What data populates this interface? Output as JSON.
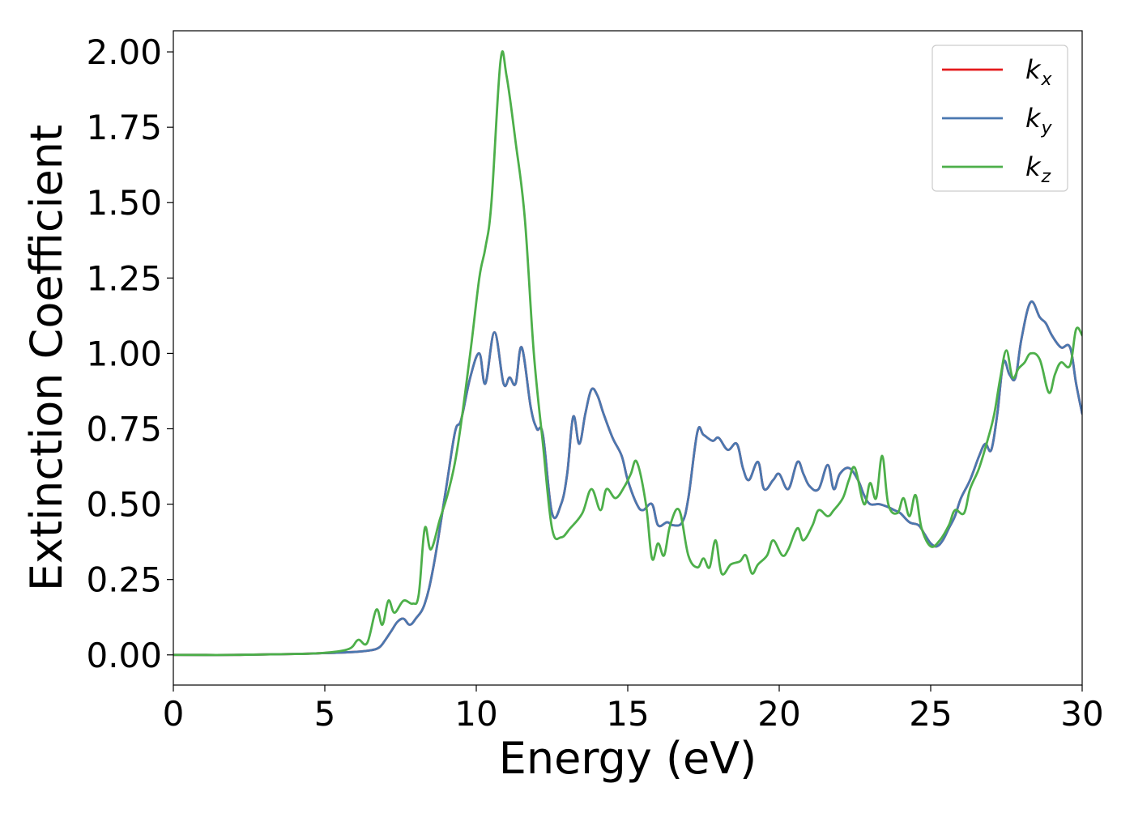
{
  "chart_data": {
    "type": "line",
    "title": "",
    "xlabel": "Energy (eV)",
    "ylabel": "Extinction Coefficient",
    "xlim": [
      0,
      30
    ],
    "ylim": [
      -0.1,
      2.07
    ],
    "xticks": [
      0,
      5,
      10,
      15,
      20,
      25,
      30
    ],
    "xtick_labels": [
      "0",
      "5",
      "10",
      "15",
      "20",
      "25",
      "30"
    ],
    "yticks": [
      0,
      0.25,
      0.5,
      0.75,
      1.0,
      1.25,
      1.5,
      1.75,
      2.0
    ],
    "ytick_labels": [
      "0.00",
      "0.25",
      "0.50",
      "0.75",
      "1.00",
      "1.25",
      "1.50",
      "1.75",
      "2.00"
    ],
    "grid": false,
    "legend_position": "top-right",
    "series": [
      {
        "name": "k_x",
        "legend_base": "k",
        "legend_sub": "x",
        "color": "#e41a1c",
        "x": [
          0,
          2,
          4,
          5,
          6,
          6.5,
          6.8,
          7.0,
          7.2,
          7.4,
          7.6,
          7.8,
          8.0,
          8.3,
          8.6,
          9.0,
          9.3,
          9.5,
          9.8,
          10.1,
          10.3,
          10.6,
          10.9,
          11.1,
          11.3,
          11.5,
          11.8,
          12.0,
          12.2,
          12.5,
          12.8,
          13.0,
          13.2,
          13.4,
          13.6,
          13.8,
          14.0,
          14.2,
          14.5,
          14.8,
          15.0,
          15.3,
          15.5,
          15.8,
          16.0,
          16.3,
          16.5,
          16.8,
          17.0,
          17.3,
          17.5,
          17.8,
          18.0,
          18.3,
          18.6,
          18.8,
          19.0,
          19.3,
          19.5,
          19.8,
          20.0,
          20.3,
          20.6,
          20.8,
          21.0,
          21.3,
          21.6,
          21.8,
          22.0,
          22.3,
          22.6,
          22.8,
          23.0,
          23.3,
          23.6,
          23.8,
          24.0,
          24.3,
          24.6,
          24.8,
          25.0,
          25.2,
          25.4,
          25.6,
          25.8,
          26.0,
          26.3,
          26.6,
          26.8,
          27.0,
          27.2,
          27.4,
          27.6,
          27.8,
          28.0,
          28.3,
          28.6,
          28.8,
          29.0,
          29.3,
          29.6,
          29.8,
          30.0
        ],
        "values": [
          0.0,
          0.0,
          0.003,
          0.006,
          0.01,
          0.015,
          0.025,
          0.05,
          0.08,
          0.11,
          0.12,
          0.1,
          0.12,
          0.17,
          0.3,
          0.55,
          0.74,
          0.78,
          0.92,
          1.0,
          0.9,
          1.07,
          0.9,
          0.92,
          0.9,
          1.02,
          0.82,
          0.75,
          0.73,
          0.47,
          0.5,
          0.6,
          0.79,
          0.7,
          0.8,
          0.88,
          0.86,
          0.8,
          0.72,
          0.66,
          0.58,
          0.5,
          0.48,
          0.5,
          0.43,
          0.44,
          0.43,
          0.44,
          0.52,
          0.74,
          0.73,
          0.71,
          0.72,
          0.68,
          0.7,
          0.62,
          0.58,
          0.64,
          0.55,
          0.58,
          0.6,
          0.55,
          0.64,
          0.6,
          0.56,
          0.55,
          0.63,
          0.55,
          0.6,
          0.62,
          0.58,
          0.53,
          0.5,
          0.5,
          0.49,
          0.48,
          0.47,
          0.44,
          0.43,
          0.4,
          0.37,
          0.36,
          0.38,
          0.42,
          0.46,
          0.52,
          0.58,
          0.66,
          0.7,
          0.68,
          0.8,
          0.97,
          0.93,
          0.92,
          1.05,
          1.17,
          1.12,
          1.1,
          1.06,
          1.02,
          1.02,
          0.9,
          0.8
        ]
      },
      {
        "name": "k_y",
        "legend_base": "k",
        "legend_sub": "y",
        "color": "#4a78b0",
        "x": [
          0,
          2,
          4,
          5,
          6,
          6.5,
          6.8,
          7.0,
          7.2,
          7.4,
          7.6,
          7.8,
          8.0,
          8.3,
          8.6,
          9.0,
          9.3,
          9.5,
          9.8,
          10.1,
          10.3,
          10.6,
          10.9,
          11.1,
          11.3,
          11.5,
          11.8,
          12.0,
          12.2,
          12.5,
          12.8,
          13.0,
          13.2,
          13.4,
          13.6,
          13.8,
          14.0,
          14.2,
          14.5,
          14.8,
          15.0,
          15.3,
          15.5,
          15.8,
          16.0,
          16.3,
          16.5,
          16.8,
          17.0,
          17.3,
          17.5,
          17.8,
          18.0,
          18.3,
          18.6,
          18.8,
          19.0,
          19.3,
          19.5,
          19.8,
          20.0,
          20.3,
          20.6,
          20.8,
          21.0,
          21.3,
          21.6,
          21.8,
          22.0,
          22.3,
          22.6,
          22.8,
          23.0,
          23.3,
          23.6,
          23.8,
          24.0,
          24.3,
          24.6,
          24.8,
          25.0,
          25.2,
          25.4,
          25.6,
          25.8,
          26.0,
          26.3,
          26.6,
          26.8,
          27.0,
          27.2,
          27.4,
          27.6,
          27.8,
          28.0,
          28.3,
          28.6,
          28.8,
          29.0,
          29.3,
          29.6,
          29.8,
          30.0
        ],
        "values": [
          0.0,
          0.0,
          0.003,
          0.006,
          0.01,
          0.015,
          0.025,
          0.05,
          0.08,
          0.11,
          0.12,
          0.1,
          0.12,
          0.17,
          0.3,
          0.55,
          0.74,
          0.78,
          0.92,
          1.0,
          0.9,
          1.07,
          0.9,
          0.92,
          0.9,
          1.02,
          0.82,
          0.75,
          0.73,
          0.47,
          0.5,
          0.6,
          0.79,
          0.7,
          0.8,
          0.88,
          0.86,
          0.8,
          0.72,
          0.66,
          0.58,
          0.5,
          0.48,
          0.5,
          0.43,
          0.44,
          0.43,
          0.44,
          0.52,
          0.74,
          0.73,
          0.71,
          0.72,
          0.68,
          0.7,
          0.62,
          0.58,
          0.64,
          0.55,
          0.58,
          0.6,
          0.55,
          0.64,
          0.6,
          0.56,
          0.55,
          0.63,
          0.55,
          0.6,
          0.62,
          0.58,
          0.53,
          0.5,
          0.5,
          0.49,
          0.48,
          0.47,
          0.44,
          0.43,
          0.4,
          0.37,
          0.36,
          0.38,
          0.42,
          0.46,
          0.52,
          0.58,
          0.66,
          0.7,
          0.68,
          0.8,
          0.97,
          0.93,
          0.92,
          1.05,
          1.17,
          1.12,
          1.1,
          1.06,
          1.02,
          1.02,
          0.9,
          0.8
        ]
      },
      {
        "name": "k_z",
        "legend_base": "k",
        "legend_sub": "z",
        "color": "#4daf4a",
        "x": [
          0,
          2,
          4,
          5,
          5.8,
          6.1,
          6.4,
          6.7,
          6.9,
          7.1,
          7.3,
          7.6,
          7.9,
          8.1,
          8.3,
          8.5,
          8.8,
          9.1,
          9.4,
          9.8,
          10.1,
          10.3,
          10.5,
          10.8,
          11.0,
          11.3,
          11.6,
          11.9,
          12.2,
          12.5,
          12.8,
          13.1,
          13.5,
          13.8,
          14.1,
          14.3,
          14.6,
          14.9,
          15.1,
          15.3,
          15.6,
          15.8,
          16.0,
          16.2,
          16.4,
          16.7,
          17.0,
          17.3,
          17.5,
          17.7,
          17.9,
          18.1,
          18.4,
          18.7,
          18.9,
          19.1,
          19.3,
          19.6,
          19.8,
          20.1,
          20.3,
          20.6,
          20.8,
          21.1,
          21.3,
          21.6,
          21.8,
          22.1,
          22.3,
          22.5,
          22.8,
          23.0,
          23.2,
          23.4,
          23.6,
          23.9,
          24.1,
          24.3,
          24.5,
          24.7,
          25.0,
          25.3,
          25.6,
          25.8,
          26.1,
          26.3,
          26.6,
          26.9,
          27.1,
          27.3,
          27.5,
          27.7,
          27.9,
          28.1,
          28.3,
          28.6,
          28.9,
          29.1,
          29.3,
          29.6,
          29.8,
          30.0
        ],
        "values": [
          0.0,
          0.0,
          0.003,
          0.007,
          0.02,
          0.05,
          0.04,
          0.15,
          0.1,
          0.18,
          0.14,
          0.18,
          0.17,
          0.2,
          0.42,
          0.35,
          0.45,
          0.55,
          0.7,
          1.0,
          1.25,
          1.35,
          1.5,
          1.97,
          1.92,
          1.7,
          1.45,
          1.0,
          0.7,
          0.42,
          0.39,
          0.42,
          0.47,
          0.55,
          0.48,
          0.55,
          0.52,
          0.56,
          0.6,
          0.64,
          0.5,
          0.32,
          0.37,
          0.33,
          0.43,
          0.48,
          0.33,
          0.29,
          0.32,
          0.29,
          0.38,
          0.27,
          0.3,
          0.31,
          0.33,
          0.27,
          0.3,
          0.33,
          0.38,
          0.33,
          0.35,
          0.42,
          0.38,
          0.43,
          0.48,
          0.46,
          0.48,
          0.52,
          0.58,
          0.62,
          0.5,
          0.57,
          0.52,
          0.66,
          0.5,
          0.47,
          0.52,
          0.46,
          0.53,
          0.42,
          0.36,
          0.38,
          0.43,
          0.48,
          0.47,
          0.55,
          0.62,
          0.72,
          0.8,
          0.92,
          1.01,
          0.92,
          0.95,
          0.97,
          1.0,
          0.98,
          0.87,
          0.93,
          0.97,
          0.96,
          1.08,
          1.06
        ]
      }
    ]
  }
}
